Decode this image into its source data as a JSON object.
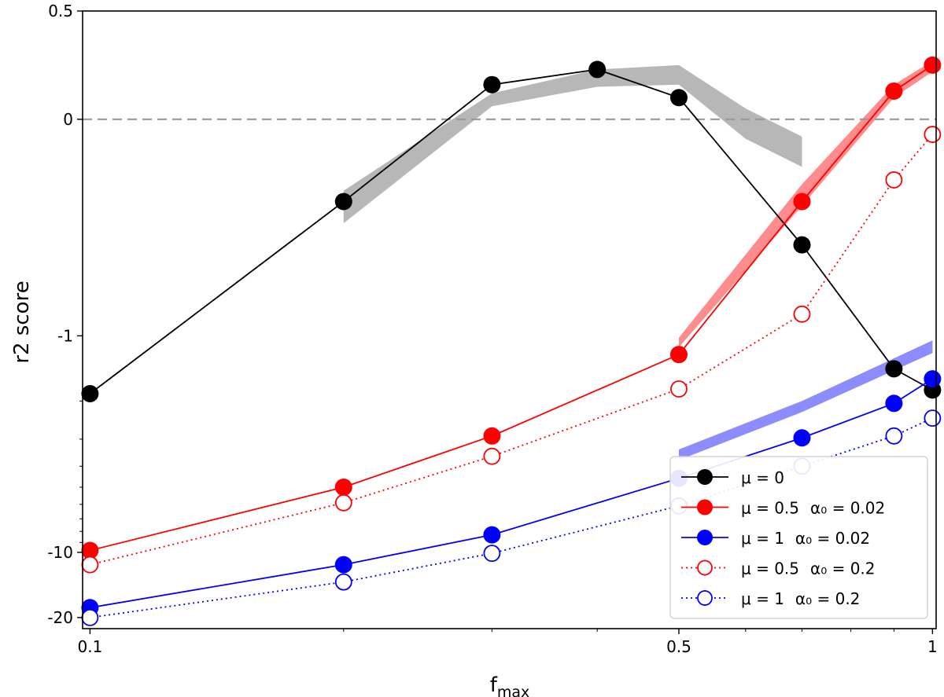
{
  "chart_data": {
    "type": "line",
    "xlabel": "f",
    "xlabel_sub": "max",
    "ylabel": "r2 score",
    "xscale": "log",
    "yscale": "symlog",
    "xlim": [
      0.098,
      1.01
    ],
    "ylim": [
      -22.5,
      0.5
    ],
    "xticks": [
      {
        "value": 0.1,
        "label": "0.1"
      },
      {
        "value": 0.5,
        "label": "0.5"
      },
      {
        "value": 1,
        "label": "1"
      }
    ],
    "yticks": [
      {
        "value": 0.5,
        "label": "0.5"
      },
      {
        "value": 0,
        "label": "0"
      },
      {
        "value": -1,
        "label": "-1"
      },
      {
        "value": -10,
        "label": "-10"
      },
      {
        "value": -20,
        "label": "-20"
      }
    ],
    "reference_line": {
      "y": 0,
      "style": "dashed",
      "color": "#999999"
    },
    "legend_position": "lower-right",
    "series": [
      {
        "name": "mu0",
        "label_main": "μ = 0",
        "label_alpha": "",
        "color": "#000000",
        "filled": true,
        "linestyle": "solid",
        "x": [
          0.1,
          0.2,
          0.3,
          0.4,
          0.5,
          0.7,
          0.9,
          1.0
        ],
        "y": [
          -1.85,
          -0.38,
          0.16,
          0.23,
          0.1,
          -0.58,
          -1.42,
          -1.78
        ]
      },
      {
        "name": "mu05_a002",
        "label_main": "μ = 0.5",
        "label_alpha": "α₀ = 0.02",
        "color": "#ff0000",
        "filled": true,
        "linestyle": "solid",
        "x": [
          0.1,
          0.2,
          0.3,
          0.5,
          0.7,
          0.9,
          1.0
        ],
        "y": [
          -9.8,
          -5.0,
          -2.9,
          -1.22,
          -0.38,
          0.13,
          0.25
        ]
      },
      {
        "name": "mu1_a002",
        "label_main": "μ = 1",
        "label_alpha": "α₀ = 0.02",
        "color": "#0000ff",
        "filled": true,
        "linestyle": "solid",
        "x": [
          0.1,
          0.2,
          0.3,
          0.5,
          0.7,
          0.9,
          1.0
        ],
        "y": [
          -18.0,
          -11.4,
          -8.3,
          -4.55,
          -2.96,
          -2.05,
          -1.58
        ]
      },
      {
        "name": "mu05_a02",
        "label_main": "μ = 0.5",
        "label_alpha": "α₀ = 0.2",
        "color": "#ff0000",
        "filled": false,
        "linestyle": "dotted",
        "x": [
          0.1,
          0.2,
          0.3,
          0.5,
          0.7,
          0.9,
          1.0
        ],
        "y": [
          -11.4,
          -5.9,
          -3.6,
          -1.76,
          -0.9,
          -0.28,
          -0.07
        ]
      },
      {
        "name": "mu1_a02",
        "label_main": "μ = 1",
        "label_alpha": "α₀ = 0.2",
        "color": "#0000ff",
        "filled": false,
        "linestyle": "dotted",
        "x": [
          0.1,
          0.2,
          0.3,
          0.5,
          0.7,
          0.9,
          1.0
        ],
        "y": [
          -20.0,
          -13.7,
          -10.1,
          -6.1,
          -4.0,
          -2.9,
          -2.4
        ]
      }
    ],
    "bands": [
      {
        "name": "gray-band",
        "color": "#999999",
        "opacity": 0.7,
        "x": [
          0.2,
          0.3,
          0.4,
          0.5,
          0.6,
          0.7
        ],
        "upper": [
          -0.33,
          0.12,
          0.23,
          0.25,
          0.05,
          -0.08
        ],
        "lower": [
          -0.48,
          0.06,
          0.15,
          0.16,
          -0.09,
          -0.22
        ]
      },
      {
        "name": "red-band",
        "color": "#ff0000",
        "opacity": 0.45,
        "x": [
          0.5,
          0.7,
          0.9,
          1.0
        ],
        "upper": [
          -1.02,
          -0.3,
          0.16,
          0.27
        ],
        "lower": [
          -1.13,
          -0.4,
          0.1,
          0.22
        ]
      },
      {
        "name": "blue-band",
        "color": "#0000ff",
        "opacity": 0.45,
        "x": [
          0.5,
          0.7,
          1.0
        ],
        "upper": [
          -3.35,
          -2.0,
          -1.05
        ],
        "lower": [
          -3.75,
          -2.25,
          -1.2
        ]
      }
    ]
  }
}
